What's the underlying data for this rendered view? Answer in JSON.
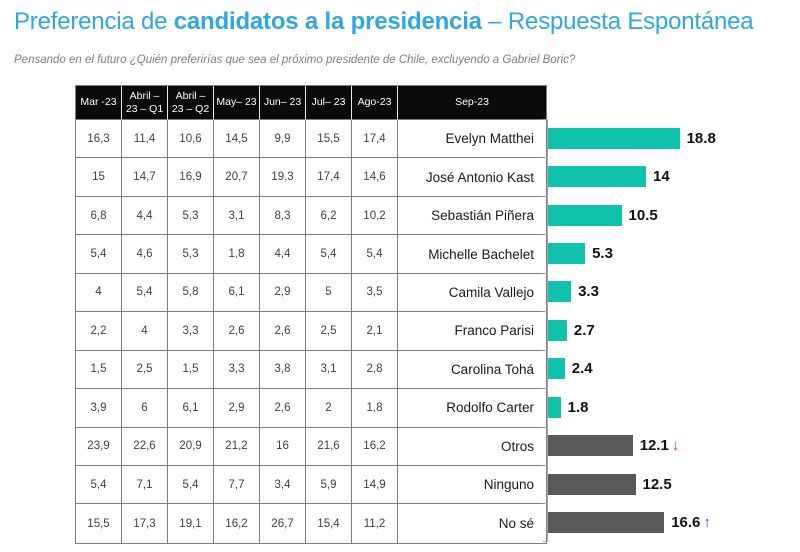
{
  "title": {
    "prefix": "Preferencia de ",
    "emphasis": "candidatos a la presidencia",
    "suffix": " – Respuesta Espontánea"
  },
  "subtitle": "Pensando en el futuro ¿Quién preferirías que sea el próximo presidente de Chile, excluyendo a Gabriel Boric?",
  "colors": {
    "title_blue": "#2FA8DF",
    "bar_teal": "#0FC2AB",
    "bar_gray": "#595959",
    "trend_down_red": "#FF2A1E",
    "trend_up_blue": "#3C3CD2",
    "header_bg": "#0a0a0a",
    "header_text": "#FFFFFF"
  },
  "chart_data": {
    "type": "bar",
    "orientation": "horizontal",
    "title": "Preferencia de candidatos a la presidencia – Respuesta Espontánea",
    "xlabel": "",
    "ylabel": "",
    "xlim": [
      0,
      20
    ],
    "grid": false,
    "legend": "none",
    "columns": [
      "Mar -23",
      "Abril – 23 – Q1",
      "Abril – 23 – Q2",
      "May– 23",
      "Jun– 23",
      "Jul– 23",
      "Ago-23",
      "Sep-23"
    ],
    "rows": [
      {
        "name": "Evelyn Matthei",
        "history": [
          "16,3",
          "11,4",
          "10,6",
          "14,5",
          "9,9",
          "15,5",
          "17,4"
        ],
        "sep23_value": 18.8,
        "sep23_label": "18.8",
        "bar_color": "#0FC2AB",
        "trend": ""
      },
      {
        "name": "José Antonio Kast",
        "history": [
          "15",
          "14,7",
          "16,9",
          "20,7",
          "19,3",
          "17,4",
          "14,6"
        ],
        "sep23_value": 14.0,
        "sep23_label": "14",
        "bar_color": "#0FC2AB",
        "trend": ""
      },
      {
        "name": "Sebastián Piñera",
        "history": [
          "6,8",
          "4,4",
          "5,3",
          "3,1",
          "8,3",
          "6,2",
          "10,2"
        ],
        "sep23_value": 10.5,
        "sep23_label": "10.5",
        "bar_color": "#0FC2AB",
        "trend": ""
      },
      {
        "name": "Michelle Bachelet",
        "history": [
          "5,4",
          "4,6",
          "5,3",
          "1,8",
          "4,4",
          "5,4",
          "5,4"
        ],
        "sep23_value": 5.3,
        "sep23_label": "5.3",
        "bar_color": "#0FC2AB",
        "trend": ""
      },
      {
        "name": "Camila Vallejo",
        "history": [
          "4",
          "5,4",
          "5,8",
          "6,1",
          "2,9",
          "5",
          "3,5"
        ],
        "sep23_value": 3.3,
        "sep23_label": "3.3",
        "bar_color": "#0FC2AB",
        "trend": ""
      },
      {
        "name": "Franco Parisi",
        "history": [
          "2,2",
          "4",
          "3,3",
          "2,6",
          "2,6",
          "2,5",
          "2,1"
        ],
        "sep23_value": 2.7,
        "sep23_label": "2.7",
        "bar_color": "#0FC2AB",
        "trend": ""
      },
      {
        "name": "Carolina Tohá",
        "history": [
          "1,5",
          "2,5",
          "1,5",
          "3,3",
          "3,8",
          "3,1",
          "2,8"
        ],
        "sep23_value": 2.4,
        "sep23_label": "2.4",
        "bar_color": "#0FC2AB",
        "trend": ""
      },
      {
        "name": "Rodolfo Carter",
        "history": [
          "3,9",
          "6",
          "6,1",
          "2,9",
          "2,6",
          "2",
          "1,8"
        ],
        "sep23_value": 1.8,
        "sep23_label": "1.8",
        "bar_color": "#0FC2AB",
        "trend": ""
      },
      {
        "name": "Otros",
        "history": [
          "23,9",
          "22,6",
          "20,9",
          "21,2",
          "16",
          "21,6",
          "16,2"
        ],
        "sep23_value": 12.1,
        "sep23_label": "12.1",
        "bar_color": "#595959",
        "trend": "down"
      },
      {
        "name": "Ninguno",
        "history": [
          "5,4",
          "7,1",
          "5,4",
          "7,7",
          "3,4",
          "5,9",
          "14,9"
        ],
        "sep23_value": 12.5,
        "sep23_label": "12.5",
        "bar_color": "#595959",
        "trend": ""
      },
      {
        "name": "No sé",
        "history": [
          "15,5",
          "17,3",
          "19,1",
          "16,2",
          "26,7",
          "15,4",
          "11,2"
        ],
        "sep23_value": 16.6,
        "sep23_label": "16.6",
        "bar_color": "#595959",
        "trend": "up"
      }
    ]
  }
}
